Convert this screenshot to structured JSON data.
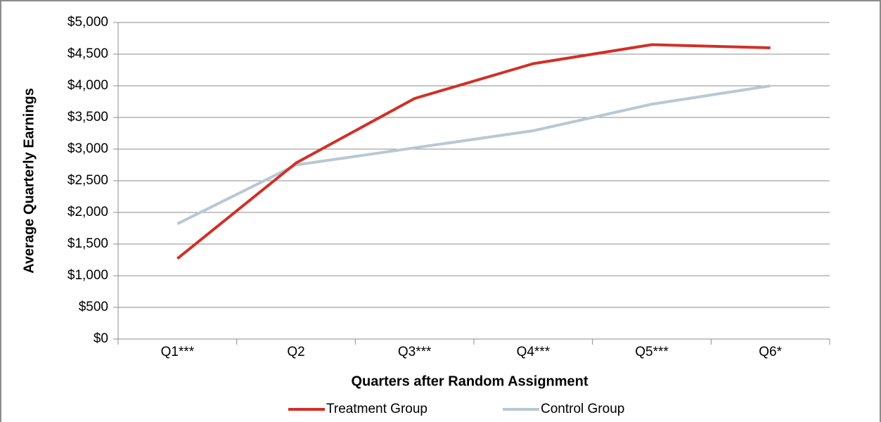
{
  "chart_data": {
    "type": "line",
    "xlabel": "Quarters after Random Assignment",
    "ylabel": "Average Quarterly Earnings",
    "categories": [
      "Q1***",
      "Q2",
      "Q3***",
      "Q4***",
      "Q5***",
      "Q6*"
    ],
    "series": [
      {
        "name": "Treatment Group",
        "color": "#d03028",
        "values": [
          1270,
          2780,
          3800,
          4350,
          4650,
          4600
        ]
      },
      {
        "name": "Control Group",
        "color": "#b8c8d4",
        "values": [
          1820,
          2750,
          3020,
          3290,
          3710,
          4000
        ]
      }
    ],
    "ylim": [
      0,
      5000
    ],
    "yticks": [
      {
        "value": 0,
        "label": "$0"
      },
      {
        "value": 500,
        "label": "$500"
      },
      {
        "value": 1000,
        "label": "$1,000"
      },
      {
        "value": 1500,
        "label": "$1,500"
      },
      {
        "value": 2000,
        "label": "$2,000"
      },
      {
        "value": 2500,
        "label": "$2,500"
      },
      {
        "value": 3000,
        "label": "$3,000"
      },
      {
        "value": 3500,
        "label": "$3,500"
      },
      {
        "value": 4000,
        "label": "$4,000"
      },
      {
        "value": 4500,
        "label": "$4,500"
      },
      {
        "value": 5000,
        "label": "$5,000"
      }
    ],
    "grid": true,
    "legend": "bottom"
  }
}
